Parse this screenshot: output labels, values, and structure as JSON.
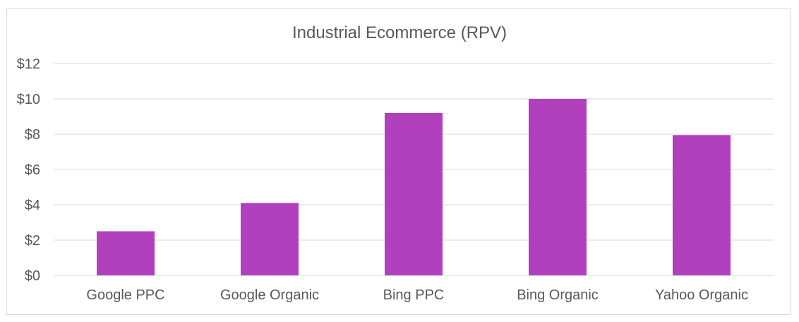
{
  "chart_data": {
    "type": "bar",
    "title": "Industrial Ecommerce (RPV)",
    "xlabel": "",
    "ylabel": "",
    "categories": [
      "Google PPC",
      "Google Organic",
      "Bing PPC",
      "Bing Organic",
      "Yahoo Organic"
    ],
    "values": [
      2.5,
      4.1,
      9.2,
      10.0,
      7.95
    ],
    "ylim": [
      0,
      12
    ],
    "yticks": [
      0,
      2,
      4,
      6,
      8,
      10,
      12
    ],
    "ytick_labels": [
      "$0",
      "$2",
      "$4",
      "$6",
      "$8",
      "$10",
      "$12"
    ],
    "grid": true,
    "legend": "none",
    "colors": {
      "bar": "#b040bb",
      "grid": "#d9d9d9",
      "text": "#595959"
    }
  }
}
